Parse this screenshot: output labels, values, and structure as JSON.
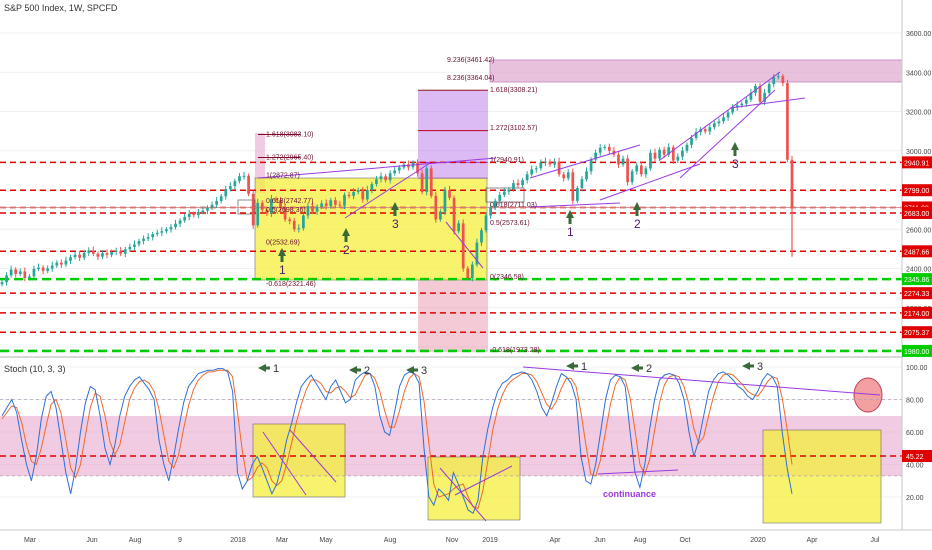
{
  "header": {
    "title": "S&P 500 Index, 1W, SPCFD"
  },
  "colors": {
    "up": "#26a69a",
    "down": "#ef5350",
    "red_level": "#e00000",
    "green_level": "#00cc00",
    "yellow_box": "#f5ef3c",
    "pink_zone": "#e6a0c8",
    "purple": "#9a3ae0",
    "stoch_k": "#2f6fd6",
    "stoch_d": "#ef6a2a",
    "arrow": "#3a6a3a",
    "fib": "#8b0020"
  },
  "price_axis": {
    "ticks": [
      "3600.00",
      "3400.00",
      "3200.00",
      "3000.00",
      "2800.00",
      "2600.00",
      "2400.00",
      "2200.00",
      "2000.00"
    ],
    "level_tags": [
      {
        "value": 2940.91,
        "label": "2940.91",
        "color": "red"
      },
      {
        "value": 2799.0,
        "label": "2799.00",
        "color": "red"
      },
      {
        "value": 2711.03,
        "label": "2711.03",
        "color": "red"
      },
      {
        "value": 2683.0,
        "label": "2683.00",
        "color": "red"
      },
      {
        "value": 2487.66,
        "label": "2487.66",
        "color": "red"
      },
      {
        "value": 2345.86,
        "label": "2345.86",
        "color": "green"
      },
      {
        "value": 2274.33,
        "label": "2274.33",
        "color": "red"
      },
      {
        "value": 2174.0,
        "label": "2174.00",
        "color": "red"
      },
      {
        "value": 2075.37,
        "label": "2075.37",
        "color": "red"
      },
      {
        "value": 1980.0,
        "label": "1980.00",
        "color": "green"
      }
    ]
  },
  "stoch_axis": {
    "ticks": [
      "100.00",
      "80.00",
      "60.00",
      "40.00",
      "20.00"
    ],
    "tag": {
      "value": 45.22,
      "label": "45.22"
    }
  },
  "time_axis": {
    "labels": [
      "Mar",
      "Jun",
      "Aug",
      "9",
      "2018",
      "Mar",
      "May",
      "Aug",
      "Nov",
      "2019",
      "Apr",
      "Jun",
      "Aug",
      "Oct",
      "2020",
      "Apr",
      "Jul"
    ]
  },
  "stoch_label": "Stoch (10, 3, 3)",
  "fib_labels_left": [
    "1.618(3083.10)",
    "1.272(2965.40)",
    "1(2872.87)",
    "0.618(2742.77)",
    "0.5(2698.36)",
    "0(2532.69)",
    "-0.618(2321.46)"
  ],
  "fib_labels_right": [
    "9.236(3461.42)",
    "8.236(3364.04)",
    "1.618(3308.21)",
    "1.272(3102.57)",
    "1(2940.91)",
    "0.618(2711.03)",
    "0.5(2573.61)",
    "0(2346.58)",
    "-0.618(1973.28)"
  ],
  "markers_price": [
    "1",
    "2",
    "3",
    "1",
    "2",
    "3"
  ],
  "markers_stoch": [
    "1",
    "2",
    "3",
    "1",
    "2",
    "3"
  ],
  "annotation": "continuance",
  "chart_data": {
    "type": "candlestick",
    "title": "S&P 500 Index, 1W, SPCFD",
    "ylim": [
      1960,
      3700
    ],
    "weeks": 174,
    "closes": [
      2330,
      2365,
      2395,
      2372,
      2385,
      2352,
      2360,
      2398,
      2405,
      2388,
      2400,
      2415,
      2430,
      2420,
      2440,
      2458,
      2470,
      2455,
      2480,
      2492,
      2475,
      2460,
      2478,
      2470,
      2485,
      2490,
      2475,
      2498,
      2510,
      2523,
      2540,
      2552,
      2560,
      2575,
      2582,
      2590,
      2600,
      2611,
      2628,
      2645,
      2663,
      2678,
      2672,
      2688,
      2695,
      2710,
      2725,
      2744,
      2768,
      2805,
      2820,
      2845,
      2870,
      2872,
      2780,
      2620,
      2735,
      2700,
      2680,
      2755,
      2748,
      2710,
      2650,
      2642,
      2600,
      2605,
      2670,
      2718,
      2690,
      2715,
      2732,
      2718,
      2748,
      2725,
      2720,
      2775,
      2770,
      2790,
      2800,
      2752,
      2800,
      2830,
      2855,
      2870,
      2850,
      2885,
      2900,
      2915,
      2930,
      2916,
      2940,
      2885,
      2790,
      2910,
      2770,
      2650,
      2690,
      2800,
      2760,
      2590,
      2630,
      2400,
      2351,
      2420,
      2532,
      2595,
      2670,
      2710,
      2745,
      2775,
      2792,
      2803,
      2835,
      2825,
      2850,
      2880,
      2905,
      2911,
      2940,
      2945,
      2930,
      2945,
      2880,
      2860,
      2890,
      2745,
      2810,
      2855,
      2895,
      2955,
      2990,
      3015,
      3020,
      3000,
      2980,
      2930,
      2960,
      2840,
      2895,
      2925,
      2880,
      2910,
      2990,
      2960,
      3005,
      2980,
      3018,
      2950,
      2970,
      3000,
      3030,
      3065,
      3095,
      3110,
      3098,
      3120,
      3140,
      3150,
      3170,
      3195,
      3220,
      3232,
      3240,
      3260,
      3295,
      3330,
      3250,
      3295,
      3340,
      3375,
      3380,
      3345,
      2954,
      2710
    ],
    "support_resistance_levels": [
      2940.91,
      2799.0,
      2711.03,
      2683.0,
      2487.66,
      2345.86,
      2274.33,
      2174.0,
      2075.37,
      1980.0
    ],
    "stoch_k": [
      70,
      75,
      80,
      72,
      55,
      40,
      30,
      45,
      68,
      82,
      85,
      75,
      55,
      35,
      22,
      38,
      60,
      78,
      88,
      86,
      70,
      50,
      40,
      52,
      70,
      82,
      88,
      92,
      94,
      90,
      86,
      80,
      55,
      40,
      30,
      45,
      62,
      78,
      88,
      92,
      96,
      97,
      98,
      98,
      99,
      99,
      97,
      85,
      35,
      25,
      30,
      40,
      45,
      38,
      30,
      22,
      28,
      40,
      55,
      65,
      78,
      88,
      92,
      95,
      90,
      85,
      80,
      88,
      92,
      85,
      78,
      80,
      92,
      95,
      97,
      96,
      88,
      70,
      60,
      58,
      72,
      88,
      95,
      97,
      96,
      90,
      50,
      20,
      15,
      25,
      22,
      18,
      35,
      28,
      20,
      12,
      10,
      18,
      45,
      62,
      75,
      85,
      90,
      92,
      95,
      96,
      97,
      96,
      92,
      85,
      75,
      70,
      78,
      88,
      96,
      94,
      90,
      80,
      45,
      30,
      28,
      40,
      60,
      80,
      92,
      95,
      94,
      88,
      60,
      35,
      26,
      40,
      62,
      80,
      92,
      95,
      96,
      95,
      90,
      80,
      60,
      45,
      55,
      70,
      85,
      92,
      96,
      97,
      95,
      92,
      88,
      86,
      82,
      80,
      85,
      92,
      96,
      94,
      88,
      60,
      38,
      22
    ],
    "stoch_d": [
      68,
      72,
      76,
      75,
      66,
      52,
      42,
      40,
      50,
      64,
      77,
      80,
      72,
      55,
      38,
      32,
      40,
      58,
      75,
      84,
      82,
      70,
      54,
      46,
      52,
      66,
      80,
      87,
      91,
      92,
      90,
      85,
      74,
      58,
      42,
      38,
      46,
      62,
      76,
      86,
      92,
      95,
      97,
      97,
      98,
      98,
      98,
      94,
      72,
      48,
      30,
      32,
      38,
      41,
      38,
      30,
      27,
      30,
      40,
      53,
      66,
      77,
      86,
      92,
      92,
      90,
      85,
      84,
      87,
      88,
      85,
      81,
      83,
      89,
      95,
      96,
      93,
      85,
      73,
      63,
      63,
      73,
      85,
      93,
      96,
      94,
      79,
      53,
      28,
      20,
      21,
      22,
      25,
      27,
      28,
      20,
      14,
      13,
      24,
      42,
      61,
      74,
      83,
      89,
      92,
      94,
      96,
      96,
      95,
      91,
      84,
      77,
      74,
      79,
      87,
      93,
      93,
      88,
      72,
      52,
      34,
      33,
      43,
      60,
      77,
      89,
      94,
      92,
      81,
      61,
      40,
      34,
      43,
      61,
      78,
      89,
      94,
      95,
      94,
      88,
      77,
      62,
      53,
      57,
      70,
      82,
      91,
      95,
      96,
      95,
      92,
      89,
      85,
      83,
      82,
      86,
      91,
      94,
      93,
      81,
      62,
      40
    ],
    "stoch_levels": [
      80,
      45.22,
      33
    ],
    "stoch_ylim": [
      0,
      105
    ]
  }
}
